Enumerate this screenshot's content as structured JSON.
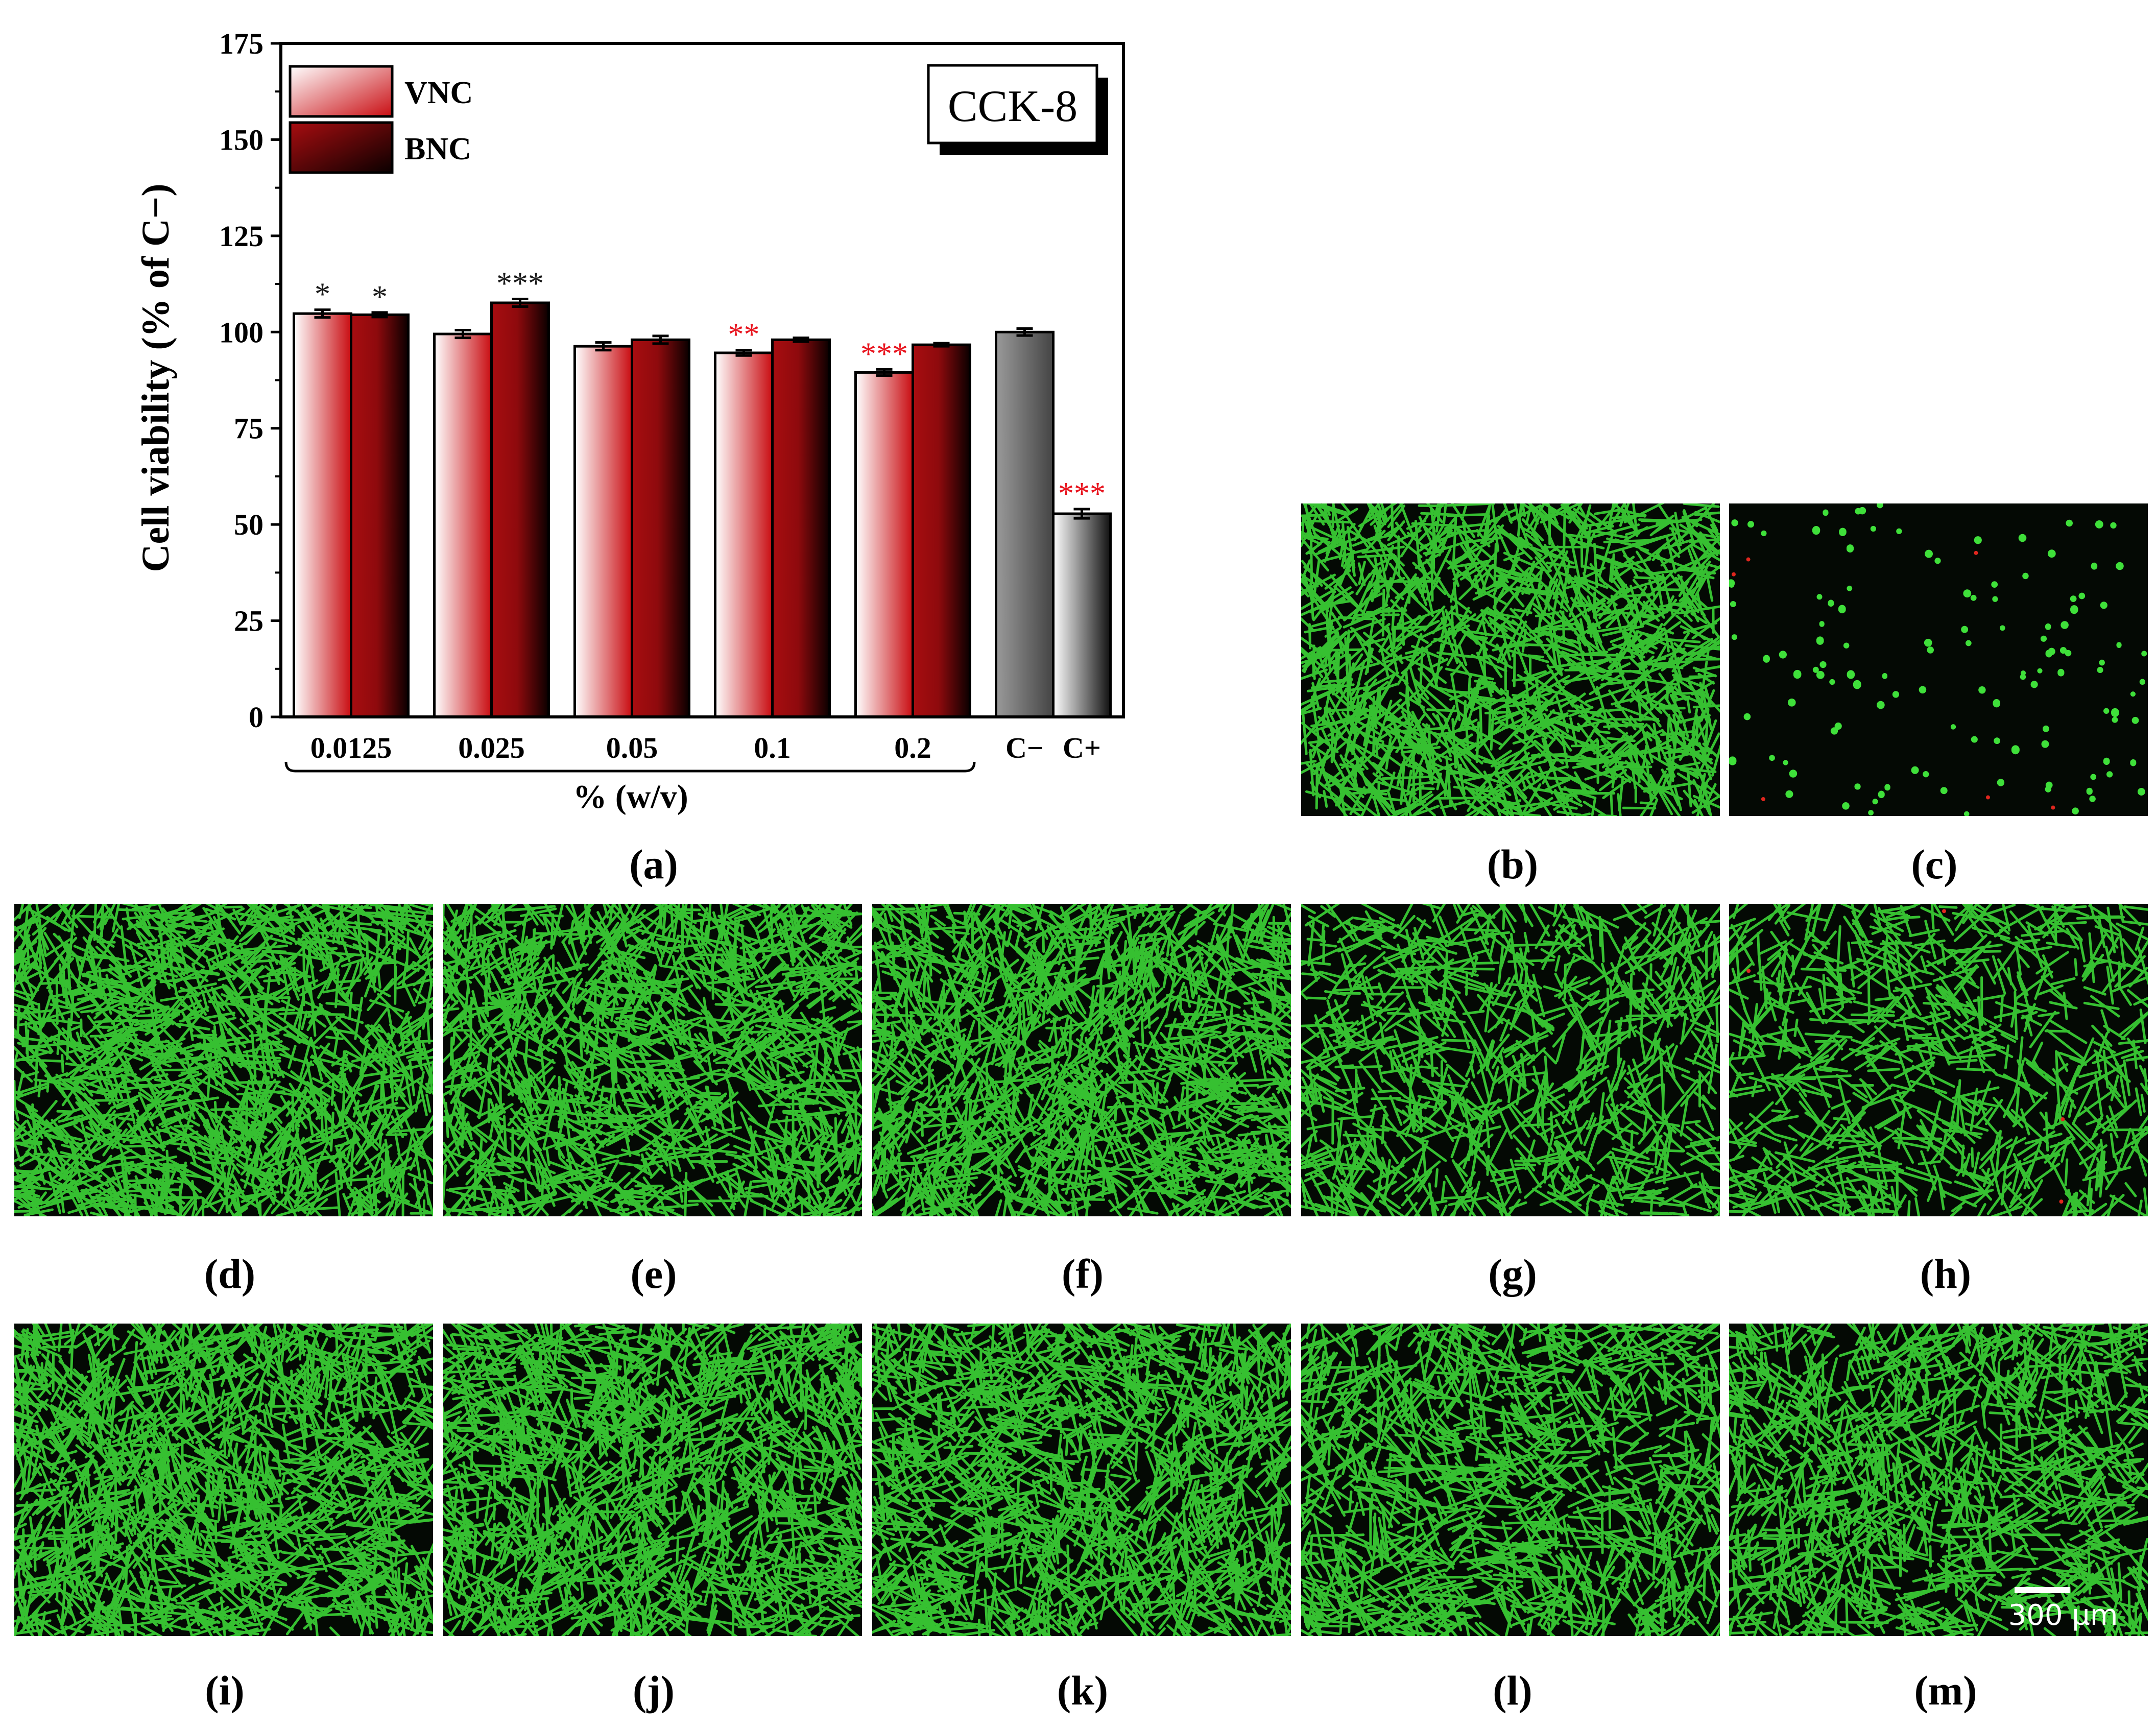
{
  "chart_data": {
    "type": "bar",
    "ylabel": "Cell viability (% of C−)",
    "xlabel": "% (w/v)",
    "ylim": [
      0,
      175
    ],
    "yticks": [
      0,
      25,
      50,
      75,
      100,
      125,
      150,
      175
    ],
    "badge": "CCK-8",
    "legend_position": "top-left",
    "groups": [
      "0.0125",
      "0.025",
      "0.05",
      "0.1",
      "0.2"
    ],
    "series": [
      {
        "name": "VNC",
        "values": [
          104.8,
          99.5,
          96.3,
          94.6,
          89.5
        ],
        "errors": [
          1.0,
          1.0,
          1.0,
          0.7,
          0.8
        ],
        "sig": [
          "*",
          "",
          "",
          "**",
          "***"
        ],
        "sig_colors": [
          "#1a1a1a",
          "",
          "",
          "#e8141e",
          "#e8141e"
        ],
        "colors": [
          "#ffffff",
          "#c90d12"
        ]
      },
      {
        "name": "BNC",
        "values": [
          104.5,
          107.6,
          98.0,
          98.0,
          96.7
        ],
        "errors": [
          0.6,
          1.0,
          1.0,
          0.5,
          0.4
        ],
        "sig": [
          "*",
          "***",
          "",
          "",
          ""
        ],
        "sig_colors": [
          "#1a1a1a",
          "#1a1a1a",
          "",
          "",
          ""
        ],
        "colors": [
          "#a80d10",
          "#0a0000"
        ]
      }
    ],
    "controls": [
      {
        "label": "C−",
        "value": 100.0,
        "error": 0.9,
        "sig": "",
        "sig_color": "",
        "colors": [
          "#9a9a9a",
          "#444444"
        ]
      },
      {
        "label": "C+",
        "value": 52.8,
        "error": 1.2,
        "sig": "***",
        "sig_color": "#e8141e",
        "colors": [
          "#ffffff",
          "#111111"
        ]
      }
    ]
  },
  "panels": {
    "labels": [
      "(a)",
      "(b)",
      "(c)",
      "(d)",
      "(e)",
      "(f)",
      "(g)",
      "(h)",
      "(i)",
      "(j)",
      "(k)",
      "(l)",
      "(m)"
    ],
    "scale_bar": "300 µm",
    "image_colors": {
      "background": "#040904",
      "live": "#3fe03a",
      "dead": "#e0261e"
    }
  }
}
